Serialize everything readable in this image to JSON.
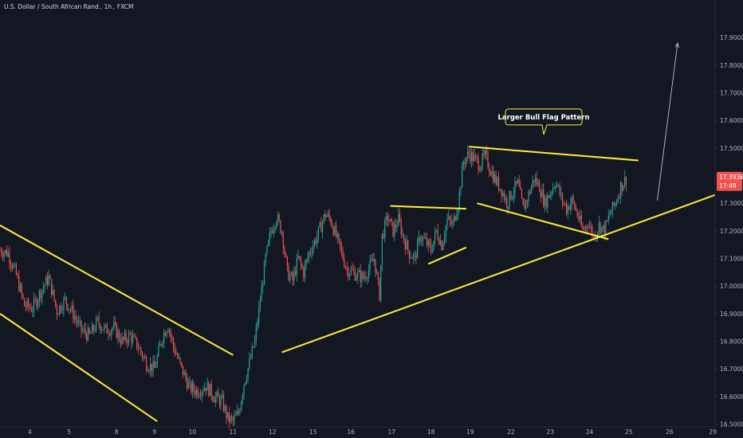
{
  "header": {
    "symbol": "U.S. Dollar / South African Rand",
    "interval": "1h",
    "exchange": "FXCM",
    "sep": ", "
  },
  "colors": {
    "background": "#131722",
    "up": "#26a69a",
    "down": "#ef5350",
    "trendline": "#ffeb3b",
    "arrow": "#d1d4dc",
    "axis_text": "#b2b5be",
    "price_tag": "#ef5350"
  },
  "annotation": {
    "text": "Larger Bull Flag Pattern"
  },
  "last_price": {
    "value": "17.39360",
    "countdown": "17:49",
    "y": 17.3936
  },
  "chart_data": {
    "type": "candlestick",
    "title": "U.S. Dollar / South African Rand, 1h, FXCM",
    "y_ticks": [
      "17.90000",
      "17.80000",
      "17.70000",
      "17.60000",
      "17.50000",
      "17.40000",
      "17.30000",
      "17.20000",
      "17.10000",
      "17.00000",
      "16.90000",
      "16.80000",
      "16.70000",
      "16.60000",
      "16.50000"
    ],
    "ylim": [
      16.49,
      17.99
    ],
    "x_ticks": [
      "4",
      "5",
      "8",
      "9",
      "10",
      "11",
      "12",
      "15",
      "16",
      "17",
      "18",
      "19",
      "22",
      "23",
      "24",
      "25",
      "26",
      "29"
    ],
    "x_tick_index": [
      22,
      51,
      86,
      114,
      142,
      172,
      201,
      231,
      259,
      289,
      318,
      347,
      377,
      406,
      435,
      464,
      494,
      526
    ],
    "x_max_index": 535,
    "close_path": [
      {
        "i": 0,
        "p": 17.13
      },
      {
        "i": 6,
        "p": 17.12
      },
      {
        "i": 12,
        "p": 17.04
      },
      {
        "i": 18,
        "p": 16.93
      },
      {
        "i": 24,
        "p": 16.92
      },
      {
        "i": 30,
        "p": 16.98
      },
      {
        "i": 36,
        "p": 17.03
      },
      {
        "i": 42,
        "p": 16.91
      },
      {
        "i": 48,
        "p": 16.95
      },
      {
        "i": 54,
        "p": 16.9
      },
      {
        "i": 60,
        "p": 16.84
      },
      {
        "i": 66,
        "p": 16.82
      },
      {
        "i": 72,
        "p": 16.87
      },
      {
        "i": 78,
        "p": 16.84
      },
      {
        "i": 84,
        "p": 16.85
      },
      {
        "i": 90,
        "p": 16.8
      },
      {
        "i": 96,
        "p": 16.82
      },
      {
        "i": 102,
        "p": 16.78
      },
      {
        "i": 108,
        "p": 16.72
      },
      {
        "i": 114,
        "p": 16.7
      },
      {
        "i": 120,
        "p": 16.82
      },
      {
        "i": 124,
        "p": 16.86
      },
      {
        "i": 128,
        "p": 16.78
      },
      {
        "i": 134,
        "p": 16.7
      },
      {
        "i": 140,
        "p": 16.63
      },
      {
        "i": 146,
        "p": 16.62
      },
      {
        "i": 152,
        "p": 16.64
      },
      {
        "i": 158,
        "p": 16.6
      },
      {
        "i": 164,
        "p": 16.58
      },
      {
        "i": 168,
        "p": 16.52
      },
      {
        "i": 172,
        "p": 16.51
      },
      {
        "i": 176,
        "p": 16.54
      },
      {
        "i": 180,
        "p": 16.65
      },
      {
        "i": 184,
        "p": 16.72
      },
      {
        "i": 188,
        "p": 16.8
      },
      {
        "i": 192,
        "p": 16.95
      },
      {
        "i": 196,
        "p": 17.1
      },
      {
        "i": 200,
        "p": 17.2
      },
      {
        "i": 204,
        "p": 17.25
      },
      {
        "i": 208,
        "p": 17.2
      },
      {
        "i": 212,
        "p": 17.05
      },
      {
        "i": 216,
        "p": 17.02
      },
      {
        "i": 220,
        "p": 17.1
      },
      {
        "i": 224,
        "p": 17.05
      },
      {
        "i": 228,
        "p": 17.12
      },
      {
        "i": 234,
        "p": 17.18
      },
      {
        "i": 240,
        "p": 17.26
      },
      {
        "i": 244,
        "p": 17.24
      },
      {
        "i": 248,
        "p": 17.18
      },
      {
        "i": 252,
        "p": 17.12
      },
      {
        "i": 256,
        "p": 17.06
      },
      {
        "i": 260,
        "p": 17.05
      },
      {
        "i": 264,
        "p": 17.04
      },
      {
        "i": 268,
        "p": 17.03
      },
      {
        "i": 272,
        "p": 17.06
      },
      {
        "i": 276,
        "p": 17.1
      },
      {
        "i": 280,
        "p": 16.97
      },
      {
        "i": 282,
        "p": 17.18
      },
      {
        "i": 286,
        "p": 17.25
      },
      {
        "i": 290,
        "p": 17.2
      },
      {
        "i": 294,
        "p": 17.24
      },
      {
        "i": 298,
        "p": 17.17
      },
      {
        "i": 302,
        "p": 17.12
      },
      {
        "i": 306,
        "p": 17.1
      },
      {
        "i": 310,
        "p": 17.18
      },
      {
        "i": 314,
        "p": 17.16
      },
      {
        "i": 318,
        "p": 17.13
      },
      {
        "i": 322,
        "p": 17.2
      },
      {
        "i": 326,
        "p": 17.15
      },
      {
        "i": 330,
        "p": 17.24
      },
      {
        "i": 334,
        "p": 17.22
      },
      {
        "i": 338,
        "p": 17.3
      },
      {
        "i": 342,
        "p": 17.45
      },
      {
        "i": 346,
        "p": 17.48
      },
      {
        "i": 350,
        "p": 17.46
      },
      {
        "i": 354,
        "p": 17.44
      },
      {
        "i": 358,
        "p": 17.47
      },
      {
        "i": 362,
        "p": 17.42
      },
      {
        "i": 366,
        "p": 17.38
      },
      {
        "i": 370,
        "p": 17.35
      },
      {
        "i": 374,
        "p": 17.3
      },
      {
        "i": 378,
        "p": 17.34
      },
      {
        "i": 382,
        "p": 17.37
      },
      {
        "i": 386,
        "p": 17.28
      },
      {
        "i": 390,
        "p": 17.33
      },
      {
        "i": 394,
        "p": 17.39
      },
      {
        "i": 398,
        "p": 17.36
      },
      {
        "i": 402,
        "p": 17.3
      },
      {
        "i": 406,
        "p": 17.34
      },
      {
        "i": 410,
        "p": 17.38
      },
      {
        "i": 414,
        "p": 17.32
      },
      {
        "i": 418,
        "p": 17.28
      },
      {
        "i": 422,
        "p": 17.31
      },
      {
        "i": 426,
        "p": 17.26
      },
      {
        "i": 430,
        "p": 17.2
      },
      {
        "i": 434,
        "p": 17.23
      },
      {
        "i": 438,
        "p": 17.18
      },
      {
        "i": 442,
        "p": 17.22
      },
      {
        "i": 446,
        "p": 17.2
      },
      {
        "i": 450,
        "p": 17.26
      },
      {
        "i": 454,
        "p": 17.3
      },
      {
        "i": 458,
        "p": 17.36
      },
      {
        "i": 462,
        "p": 17.39
      }
    ],
    "trendlines": [
      {
        "name": "descending-channel-upper",
        "from": {
          "i": 0,
          "p": 17.22
        },
        "to": {
          "i": 172,
          "p": 16.75
        }
      },
      {
        "name": "descending-channel-lower",
        "from": {
          "i": 0,
          "p": 16.9
        },
        "to": {
          "i": 116,
          "p": 16.51
        }
      },
      {
        "name": "rising-support-line",
        "from": {
          "i": 208,
          "p": 16.76
        },
        "to": {
          "i": 552,
          "p": 17.33
        }
      },
      {
        "name": "small-flag-upper",
        "from": {
          "i": 288,
          "p": 17.29
        },
        "to": {
          "i": 344,
          "p": 17.28
        }
      },
      {
        "name": "small-flag-lower",
        "from": {
          "i": 316,
          "p": 17.08
        },
        "to": {
          "i": 344,
          "p": 17.14
        }
      },
      {
        "name": "large-flag-upper",
        "from": {
          "i": 346,
          "p": 17.505
        },
        "to": {
          "i": 471,
          "p": 17.455
        }
      },
      {
        "name": "large-flag-lower",
        "from": {
          "i": 352,
          "p": 17.3
        },
        "to": {
          "i": 449,
          "p": 17.17
        }
      }
    ],
    "arrow": {
      "from": {
        "i": 485,
        "p": 17.31
      },
      "to": {
        "i": 500,
        "p": 17.88
      }
    },
    "annotation_anchor": {
      "i": 400,
      "p": 17.52
    }
  }
}
